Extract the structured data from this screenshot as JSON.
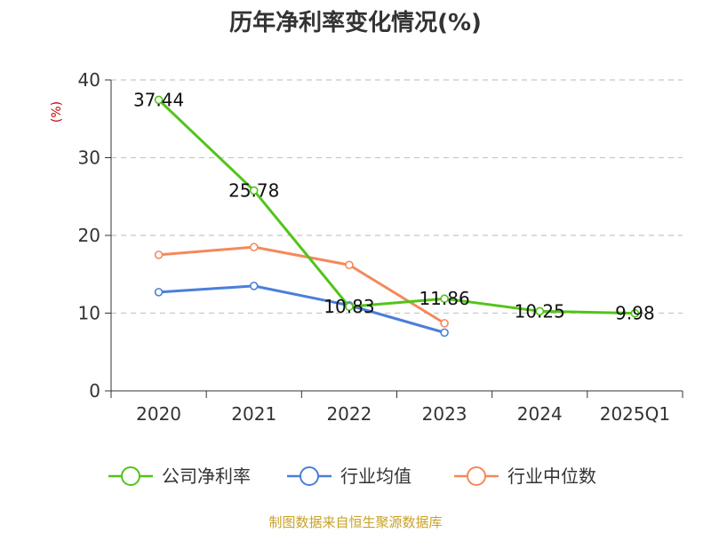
{
  "chart_data": {
    "type": "line",
    "title": "历年净利率变化情况(%)",
    "ylabel": "(%)",
    "xlabel": "",
    "categories": [
      "2020",
      "2021",
      "2022",
      "2023",
      "2024",
      "2025Q1"
    ],
    "ylim": [
      0,
      40
    ],
    "yticks": [
      0,
      10,
      20,
      30,
      40
    ],
    "grid": true,
    "legend_position": "bottom",
    "series": [
      {
        "name": "公司净利率",
        "color": "#52c41a",
        "values": [
          37.44,
          25.78,
          10.83,
          11.86,
          10.25,
          9.98
        ],
        "labels": [
          "37.44",
          "25.78",
          "10.83",
          "11.86",
          "10.25",
          "9.98"
        ]
      },
      {
        "name": "行业均值",
        "color": "#4a7fd8",
        "values": [
          12.7,
          13.5,
          11.0,
          7.5,
          null,
          null
        ]
      },
      {
        "name": "行业中位数",
        "color": "#f4895a",
        "values": [
          17.5,
          18.5,
          16.2,
          8.7,
          null,
          null
        ]
      }
    ],
    "source": "制图数据来自恒生聚源数据库"
  }
}
